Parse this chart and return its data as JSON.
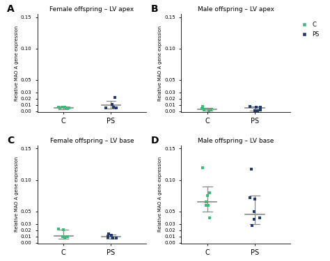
{
  "panels": [
    {
      "label": "A",
      "title": "Female offspring – LV apex",
      "C_color": "#3dba78",
      "PS_color": "#1e3a6e",
      "C_points": [
        0.0065,
        0.0055,
        0.006,
        0.007,
        0.0048,
        0.0058,
        0.0062
      ],
      "PS_points": [
        0.0225,
        0.0115,
        0.0065,
        0.0055,
        0.005
      ],
      "C_mean": 0.006,
      "C_sem_low": 0.003,
      "C_sem_high": 0.008,
      "PS_mean": 0.01,
      "PS_sem_low": 0.004,
      "PS_sem_high": 0.016,
      "ylim": [
        -0.001,
        0.155
      ],
      "yticks": [
        0.0,
        0.01,
        0.02,
        0.03,
        0.05,
        0.1,
        0.15
      ],
      "show_legend": false
    },
    {
      "label": "B",
      "title": "Male offspring – LV apex",
      "C_color": "#3dba78",
      "PS_color": "#1e3a6e",
      "C_points": [
        0.003,
        0.004,
        0.002,
        0.001,
        0.008
      ],
      "PS_points": [
        0.007,
        0.008,
        0.007,
        0.002,
        0.001,
        0.001,
        0.001
      ],
      "C_mean": 0.003,
      "C_sem_low": 0.001,
      "C_sem_high": 0.005,
      "PS_mean": 0.006,
      "PS_sem_low": 0.001,
      "PS_sem_high": 0.008,
      "ylim": [
        -0.001,
        0.155
      ],
      "yticks": [
        0.0,
        0.01,
        0.02,
        0.03,
        0.05,
        0.1,
        0.15
      ],
      "show_legend": true
    },
    {
      "label": "C",
      "title": "Female offspring – LV base",
      "C_color": "#3dba78",
      "PS_color": "#1e3a6e",
      "C_points": [
        0.022,
        0.021,
        0.01,
        0.01,
        0.009
      ],
      "PS_points": [
        0.014,
        0.012,
        0.01,
        0.009,
        0.008,
        0.008
      ],
      "C_mean": 0.011,
      "C_sem_low": 0.006,
      "C_sem_high": 0.021,
      "PS_mean": 0.01,
      "PS_sem_low": 0.007,
      "PS_sem_high": 0.013,
      "ylim": [
        -0.001,
        0.155
      ],
      "yticks": [
        0.0,
        0.01,
        0.02,
        0.03,
        0.05,
        0.1,
        0.15
      ],
      "show_legend": false
    },
    {
      "label": "D",
      "title": "Male offspring – LV base",
      "C_color": "#3dba78",
      "PS_color": "#1e3a6e",
      "C_points": [
        0.12,
        0.08,
        0.075,
        0.065,
        0.06,
        0.06,
        0.04
      ],
      "PS_points": [
        0.117,
        0.072,
        0.07,
        0.05,
        0.04,
        0.038,
        0.028
      ],
      "C_mean": 0.065,
      "C_sem_low": 0.05,
      "C_sem_high": 0.09,
      "PS_mean": 0.045,
      "PS_sem_low": 0.03,
      "PS_sem_high": 0.075,
      "ylim": [
        -0.001,
        0.155
      ],
      "yticks": [
        0.0,
        0.01,
        0.02,
        0.03,
        0.05,
        0.1,
        0.15
      ],
      "show_legend": false
    }
  ],
  "legend_labels": [
    "C",
    "PS"
  ],
  "legend_colors": [
    "#3dba78",
    "#1e3a6e"
  ],
  "ylabel": "Relative MAO A gene expression",
  "xlabel_C": "C",
  "xlabel_PS": "PS",
  "background_color": "#ffffff"
}
